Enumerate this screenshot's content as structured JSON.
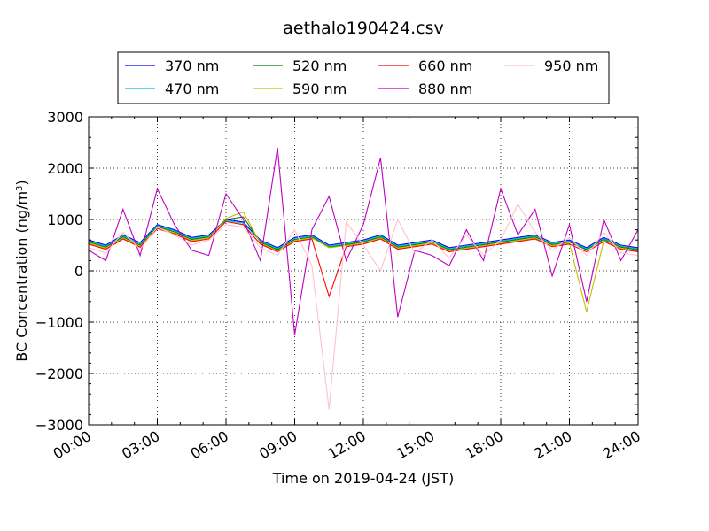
{
  "chart_data": {
    "type": "line",
    "title": "aethalo190424.csv",
    "xlabel": "Time on 2019-04-24 (JST)",
    "ylabel": "BC Concentration (ng/m",
    "ylabel_unit_superscript": "3",
    "ylabel_suffix": ")",
    "ylim": [
      -3000,
      3000
    ],
    "yticks": [
      -3000,
      -2000,
      -1000,
      0,
      1000,
      2000,
      3000
    ],
    "ytick_labels": [
      "−3000",
      "−2000",
      "−1000",
      "0",
      "1000",
      "2000",
      "3000"
    ],
    "xlim": [
      "00:00",
      "24:00"
    ],
    "xticks": [
      "00:00",
      "03:00",
      "06:00",
      "09:00",
      "12:00",
      "15:00",
      "18:00",
      "21:00",
      "24:00"
    ],
    "grid": true,
    "legend_position": "top",
    "x": [
      "00:00",
      "00:45",
      "01:30",
      "02:15",
      "03:00",
      "03:45",
      "04:30",
      "05:15",
      "06:00",
      "06:45",
      "07:30",
      "08:15",
      "09:00",
      "09:45",
      "10:30",
      "11:15",
      "12:00",
      "12:45",
      "13:30",
      "14:15",
      "15:00",
      "15:45",
      "16:30",
      "17:15",
      "18:00",
      "18:45",
      "19:30",
      "20:15",
      "21:00",
      "21:45",
      "22:30",
      "23:15",
      "24:00"
    ],
    "series": [
      {
        "name": "370 nm",
        "color": "#0000ff",
        "values": [
          600,
          500,
          700,
          550,
          900,
          800,
          650,
          700,
          1000,
          950,
          600,
          450,
          650,
          700,
          500,
          550,
          600,
          700,
          500,
          550,
          600,
          450,
          500,
          550,
          600,
          650,
          700,
          550,
          600,
          450,
          650,
          500,
          450
        ]
      },
      {
        "name": "470 nm",
        "color": "#00bfbf",
        "values": [
          580,
          480,
          680,
          520,
          880,
          780,
          630,
          680,
          980,
          930,
          580,
          430,
          630,
          680,
          480,
          530,
          580,
          680,
          480,
          530,
          580,
          430,
          480,
          530,
          580,
          630,
          680,
          530,
          580,
          430,
          630,
          480,
          430
        ]
      },
      {
        "name": "520 nm",
        "color": "#008000",
        "values": [
          560,
          460,
          660,
          500,
          860,
          760,
          610,
          660,
          1000,
          1050,
          560,
          410,
          610,
          660,
          460,
          510,
          560,
          660,
          460,
          510,
          560,
          410,
          460,
          510,
          560,
          610,
          660,
          510,
          560,
          410,
          610,
          460,
          410
        ]
      },
      {
        "name": "590 nm",
        "color": "#bfbf00",
        "values": [
          540,
          440,
          640,
          480,
          840,
          740,
          590,
          640,
          1020,
          1150,
          540,
          390,
          590,
          640,
          450,
          490,
          540,
          640,
          440,
          490,
          540,
          390,
          440,
          490,
          540,
          590,
          640,
          490,
          540,
          -800,
          590,
          440,
          390
        ]
      },
      {
        "name": "660 nm",
        "color": "#ff0000",
        "values": [
          520,
          420,
          620,
          460,
          820,
          720,
          570,
          620,
          960,
          900,
          520,
          370,
          570,
          620,
          -500,
          470,
          520,
          620,
          420,
          470,
          520,
          370,
          420,
          470,
          520,
          570,
          620,
          470,
          520,
          370,
          570,
          420,
          370
        ]
      },
      {
        "name": "880 nm",
        "color": "#bf00bf",
        "values": [
          400,
          200,
          1200,
          300,
          1600,
          900,
          400,
          300,
          1500,
          1000,
          200,
          2400,
          -1250,
          800,
          1450,
          200,
          900,
          2200,
          -900,
          400,
          300,
          100,
          800,
          200,
          1600,
          700,
          1200,
          -100,
          900,
          -600,
          1000,
          200,
          800
        ]
      },
      {
        "name": "950 nm",
        "color": "#ffc0cb",
        "values": [
          450,
          350,
          750,
          420,
          850,
          700,
          500,
          600,
          900,
          850,
          450,
          300,
          800,
          100,
          -2700,
          950,
          500,
          0,
          1000,
          350,
          600,
          250,
          700,
          300,
          600,
          1300,
          750,
          400,
          650,
          300,
          750,
          350,
          300
        ]
      }
    ]
  }
}
